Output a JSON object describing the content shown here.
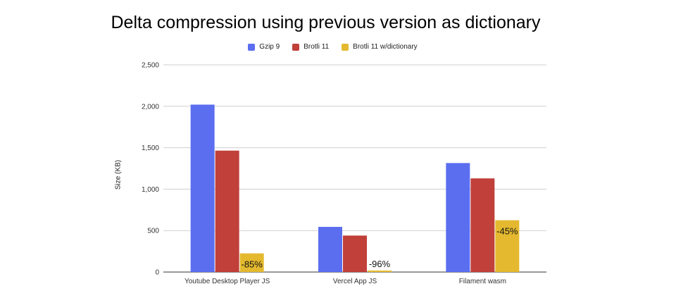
{
  "chart_data": {
    "type": "bar",
    "title": "Delta compression using previous version as dictionary",
    "xlabel": "",
    "ylabel": "Size (KB)",
    "ylim": [
      0,
      2500
    ],
    "yticks": [
      "0",
      "500",
      "1,000",
      "1,500",
      "2,000",
      "2,500"
    ],
    "ytick_values": [
      0,
      500,
      1000,
      1500,
      2000,
      2500
    ],
    "grid": true,
    "legend_position": "top",
    "categories": [
      "Youtube Desktop Player JS",
      "Vercel App JS",
      "Filament wasm"
    ],
    "series": [
      {
        "name": "Gzip 9",
        "color": "#5b6ef0",
        "values": [
          2020,
          545,
          1315
        ]
      },
      {
        "name": "Brotli 11",
        "color": "#c1403a",
        "values": [
          1465,
          440,
          1130
        ]
      },
      {
        "name": "Brotli 11 w/dictionary",
        "color": "#e4b92f",
        "values": [
          225,
          18,
          625
        ],
        "data_labels": [
          "-85%",
          "-96%",
          "-45%"
        ]
      }
    ]
  }
}
